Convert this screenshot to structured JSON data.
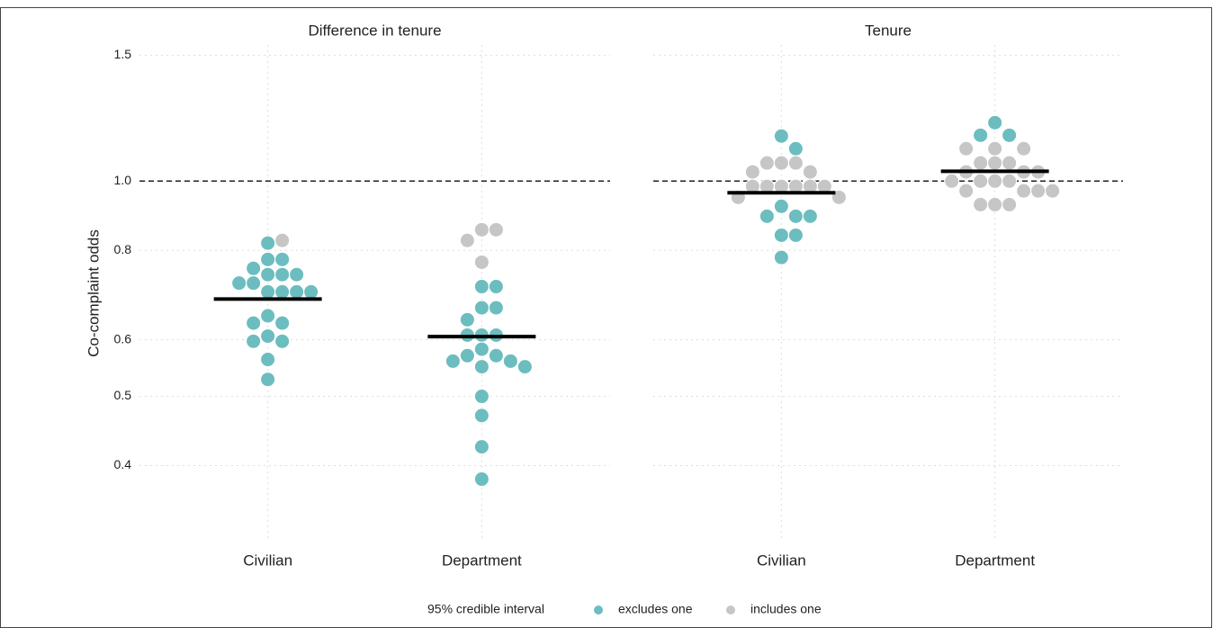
{
  "chart_data": {
    "type": "beeswarm",
    "ylabel": "Co-complaint odds",
    "log_scale": true,
    "grid": true,
    "ylim": [
      0.315,
      1.55
    ],
    "yticks": [
      0.4,
      0.5,
      0.6,
      0.8,
      {
        "value": 1,
        "label": "1.0"
      },
      1.5
    ],
    "reference_line": 1,
    "legend": {
      "title": "95% credible interval",
      "position": "bottom",
      "entries": [
        {
          "name": "excludes one",
          "color": "#6cbdbf"
        },
        {
          "name": "includes one",
          "color": "#c6c6c6"
        }
      ]
    },
    "panels": [
      {
        "title": "Difference in tenure",
        "categories": [
          "Civilian",
          "Department"
        ],
        "groups": [
          {
            "values": [
              [
                0.819,
                0.777,
                0.777,
                0.755,
                0.74,
                0.74,
                0.74,
                0.72,
                0.72,
                0.7,
                0.7,
                0.7,
                0.7,
                0.648,
                0.633,
                0.633,
                0.607,
                0.597,
                0.597,
                0.563,
                0.528
              ],
              [
                0.826
              ]
            ],
            "median": 0.684
          },
          {
            "values": [
              [
                0.712,
                0.712,
                0.665,
                0.665,
                0.64,
                0.609,
                0.609,
                0.609,
                0.582,
                0.57,
                0.57,
                0.56,
                0.56,
                0.55,
                0.55,
                0.5,
                0.47,
                0.425,
                0.383
              ],
              [
                0.855,
                0.855,
                0.826,
                0.77
              ]
            ],
            "median": 0.606
          }
        ]
      },
      {
        "title": "Tenure",
        "categories": [
          "Civilian",
          "Department"
        ],
        "groups": [
          {
            "values": [
              [
                1.156,
                1.11,
                0.922,
                0.893,
                0.893,
                0.893,
                0.84,
                0.84,
                0.782
              ],
              [
                1.06,
                1.06,
                1.06,
                1.03,
                1.03,
                0.983,
                0.983,
                0.983,
                0.983,
                0.983,
                0.983,
                0.949,
                0.949
              ]
            ],
            "median": 0.963
          },
          {
            "values": [
              [
                1.207,
                1.159,
                1.159
              ],
              [
                1.11,
                1.11,
                1.11,
                1.06,
                1.06,
                1.06,
                1.03,
                1.03,
                1.03,
                1.0,
                1.0,
                1.0,
                1.0,
                0.969,
                0.969,
                0.969,
                0.969,
                0.927,
                0.927,
                0.927
              ]
            ],
            "median": 1.032
          }
        ]
      }
    ]
  }
}
